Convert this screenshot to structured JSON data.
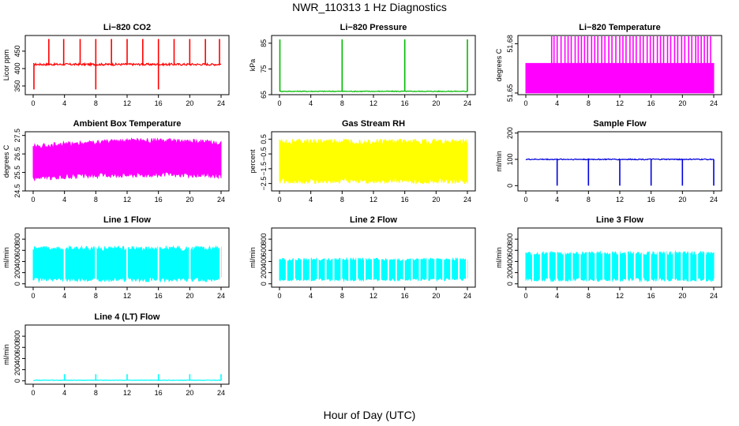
{
  "figure": {
    "title": "NWR_110313 1 Hz Diagnostics",
    "xlabel": "Hour of Day (UTC)"
  },
  "chart_data": [
    {
      "type": "line",
      "title": "Li−820 CO2",
      "ylabel": "Licor ppm",
      "color": "#ff0000",
      "xlim": [
        0,
        24
      ],
      "ylim": [
        325,
        495
      ],
      "xticks": [
        0,
        4,
        8,
        12,
        16,
        20,
        24
      ],
      "yticks": [
        350,
        400,
        450
      ],
      "ytick_labels": [
        "350",
        "400",
        "450"
      ],
      "baseline": 412,
      "noise": 3,
      "spike_top": 485,
      "spike_low": 340,
      "spikes_up": [
        2,
        3.9,
        6,
        8,
        10,
        12,
        14,
        16,
        18,
        20,
        22,
        23.8
      ],
      "spikes_down": [
        0.1,
        8,
        16
      ]
    },
    {
      "type": "line",
      "title": "Li−820 Pressure",
      "ylabel": "kPa",
      "color": "#00bb00",
      "xlim": [
        0,
        24
      ],
      "ylim": [
        65,
        88
      ],
      "xticks": [
        0,
        4,
        8,
        12,
        16,
        20,
        24
      ],
      "yticks": [
        65,
        75,
        85
      ],
      "ytick_labels": [
        "65",
        "75",
        "85"
      ],
      "baseline": 66.3,
      "noise": 0.15,
      "spike_top": 86.5,
      "spikes_up": [
        0.05,
        8,
        16,
        24
      ]
    },
    {
      "type": "line",
      "title": "Li−820 Temperature",
      "ylabel": "degrees C",
      "color": "#ff00ff",
      "xlim": [
        0,
        24
      ],
      "ylim": [
        51.649,
        51.685
      ],
      "xticks": [
        0,
        4,
        8,
        12,
        16,
        20,
        24
      ],
      "yticks": [
        51.65,
        51.68
      ],
      "ytick_labels": [
        "51.65",
        "51.68"
      ],
      "band_low": 51.65,
      "band_high": 51.668,
      "spike_top": 51.685,
      "spikes_up": [
        3.3,
        3.6,
        4.0,
        4.5,
        5.0,
        5.4,
        5.8,
        6.3,
        6.7,
        7.1,
        7.5,
        7.9,
        8.4,
        8.8,
        9.2,
        9.7,
        10.1,
        10.6,
        11.0,
        11.5,
        12.0,
        12.4,
        12.8,
        13.3,
        13.7,
        14.1,
        14.6,
        15.0,
        15.5,
        15.9,
        16.3,
        16.8,
        17.2,
        17.6,
        18.1,
        18.5,
        19.0,
        19.4,
        19.9,
        20.3,
        20.8,
        21.2,
        21.7,
        22.0,
        22.4,
        22.8,
        23.2,
        23.6
      ]
    },
    {
      "type": "line",
      "title": "Ambient Box Temperature",
      "ylabel": "degrees C",
      "color": "#ff00ff",
      "xlim": [
        0,
        24
      ],
      "ylim": [
        24.5,
        27.7
      ],
      "xticks": [
        0,
        4,
        8,
        12,
        16,
        20,
        24
      ],
      "yticks": [
        24.5,
        25.5,
        26.5,
        27.5
      ],
      "ytick_labels": [
        "24.5",
        "25.5",
        "26.5",
        "27.5"
      ],
      "band_low": 25.2,
      "band_high": 26.9,
      "band_low_end": 25.4,
      "band_high_end": 27.2
    },
    {
      "type": "line",
      "title": "Gas Stream RH",
      "ylabel": "percent",
      "color": "#ffff00",
      "xlim": [
        0,
        24
      ],
      "ylim": [
        -3.0,
        1.0
      ],
      "xticks": [
        0,
        4,
        8,
        12,
        16,
        20,
        24
      ],
      "yticks": [
        -2.5,
        -1.5,
        -0.5,
        0.5
      ],
      "ytick_labels": [
        "−2.5",
        "−1.5",
        "−0.5",
        "0.5"
      ],
      "band_low": -2.3,
      "band_high": 0.3
    },
    {
      "type": "line",
      "title": "Sample Flow",
      "ylabel": "ml/min",
      "color": "#0000dd",
      "xlim": [
        0,
        24
      ],
      "ylim": [
        -20,
        205
      ],
      "xticks": [
        0,
        4,
        8,
        12,
        16,
        20,
        24
      ],
      "yticks": [
        0,
        100,
        200
      ],
      "ytick_labels": [
        "0",
        "100",
        "200"
      ],
      "baseline": 100,
      "noise": 2,
      "spike_low": 0,
      "spikes_down": [
        4,
        8,
        12,
        16,
        20,
        24
      ]
    },
    {
      "type": "line",
      "title": "Line 1 Flow",
      "ylabel": "ml/min",
      "color": "#00ffff",
      "xlim": [
        0,
        24
      ],
      "ylim": [
        -60,
        1000
      ],
      "xticks": [
        0,
        4,
        8,
        12,
        16,
        20,
        24
      ],
      "yticks": [
        0,
        200,
        400,
        600,
        800
      ],
      "ytick_labels": [
        "0",
        "200",
        "400",
        "600",
        "800"
      ],
      "band_low": 80,
      "band_high": 630,
      "gaps": [
        4,
        8,
        12,
        16,
        20,
        23.9
      ]
    },
    {
      "type": "line",
      "title": "Line 2 Flow",
      "ylabel": "ml/min",
      "color": "#00ffff",
      "xlim": [
        0,
        24
      ],
      "ylim": [
        -60,
        1000
      ],
      "xticks": [
        0,
        4,
        8,
        12,
        16,
        20,
        24
      ],
      "yticks": [
        0,
        200,
        400,
        600,
        800
      ],
      "ytick_labels": [
        "0",
        "200",
        "400",
        "600",
        "800"
      ],
      "band_low": 80,
      "band_high": 430,
      "gaps": [
        0.9,
        1.9,
        2.9,
        3.9,
        4.9,
        5.9,
        6.9,
        7.9,
        8.9,
        9.9,
        10.9,
        11.9,
        12.9,
        13.9,
        14.9,
        15.9,
        16.9,
        17.9,
        18.9,
        19.9,
        20.9,
        21.9,
        22.9,
        23.9
      ]
    },
    {
      "type": "line",
      "title": "Line 3 Flow",
      "ylabel": "ml/min",
      "color": "#00ffff",
      "xlim": [
        0,
        24
      ],
      "ylim": [
        -60,
        1000
      ],
      "xticks": [
        0,
        4,
        8,
        12,
        16,
        20,
        24
      ],
      "yticks": [
        0,
        200,
        400,
        600,
        800
      ],
      "ytick_labels": [
        "0",
        "200",
        "400",
        "600",
        "800"
      ],
      "band_low": 80,
      "band_high": 540,
      "gaps": [
        0.9,
        1.9,
        2.9,
        3.9,
        4.9,
        5.9,
        6.9,
        7.9,
        8.9,
        9.9,
        10.9,
        11.9,
        12.9,
        13.9,
        14.9,
        15.9,
        16.9,
        17.9,
        18.9,
        19.9,
        20.9,
        21.9,
        22.9
      ]
    },
    {
      "type": "line",
      "title": "Line 4 (LT) Flow",
      "ylabel": "ml/min",
      "color": "#00ffff",
      "xlim": [
        0,
        24
      ],
      "ylim": [
        -60,
        1000
      ],
      "xticks": [
        0,
        4,
        8,
        12,
        16,
        20,
        24
      ],
      "yticks": [
        0,
        200,
        400,
        600,
        800
      ],
      "ytick_labels": [
        "0",
        "200",
        "400",
        "600",
        "800"
      ],
      "baseline": 10,
      "noise": 4,
      "spike_top": 120,
      "spikes_up": [
        4,
        8,
        12,
        16,
        20,
        24
      ]
    }
  ]
}
